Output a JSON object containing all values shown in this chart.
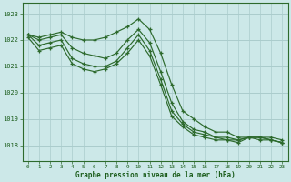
{
  "title": "Graphe pression niveau de la mer (hPa)",
  "bg_color": "#cce8e8",
  "grid_color": "#aacccc",
  "line_color": "#2d6a2d",
  "xlabel_color": "#1a5c1a",
  "x_ticks": [
    0,
    1,
    2,
    3,
    4,
    5,
    6,
    7,
    8,
    9,
    10,
    11,
    12,
    13,
    14,
    15,
    16,
    17,
    18,
    19,
    20,
    21,
    22,
    23
  ],
  "y_ticks": [
    1018,
    1019,
    1020,
    1021,
    1022,
    1023
  ],
  "ylim": [
    1017.4,
    1023.4
  ],
  "xlim": [
    -0.5,
    23.5
  ],
  "series": [
    [
      1022.2,
      1022.1,
      1022.2,
      1022.3,
      1022.1,
      1022.0,
      1022.0,
      1022.1,
      1022.3,
      1022.5,
      1022.8,
      1022.4,
      1021.5,
      1020.3,
      1019.3,
      1019.0,
      1018.7,
      1018.5,
      1018.5,
      1018.3,
      1018.3,
      1018.3,
      1018.3,
      1018.2
    ],
    [
      1022.2,
      1022.0,
      1022.1,
      1022.2,
      1021.7,
      1021.5,
      1021.4,
      1021.3,
      1021.5,
      1022.0,
      1022.4,
      1021.9,
      1020.8,
      1019.6,
      1018.9,
      1018.6,
      1018.5,
      1018.3,
      1018.3,
      1018.2,
      1018.3,
      1018.3,
      1018.2,
      1018.1
    ],
    [
      1022.2,
      1021.8,
      1021.9,
      1022.0,
      1021.3,
      1021.1,
      1021.0,
      1021.0,
      1021.2,
      1021.7,
      1022.2,
      1021.6,
      1020.5,
      1019.3,
      1018.8,
      1018.5,
      1018.4,
      1018.3,
      1018.2,
      1018.2,
      1018.3,
      1018.3,
      1018.2,
      1018.1
    ],
    [
      1022.1,
      1021.6,
      1021.7,
      1021.8,
      1021.1,
      1020.9,
      1020.8,
      1020.9,
      1021.1,
      1021.5,
      1022.0,
      1021.4,
      1020.3,
      1019.1,
      1018.7,
      1018.4,
      1018.3,
      1018.2,
      1018.2,
      1018.1,
      1018.3,
      1018.2,
      1018.2,
      1018.1
    ]
  ],
  "figsize": [
    3.2,
    2.0
  ],
  "dpi": 100
}
